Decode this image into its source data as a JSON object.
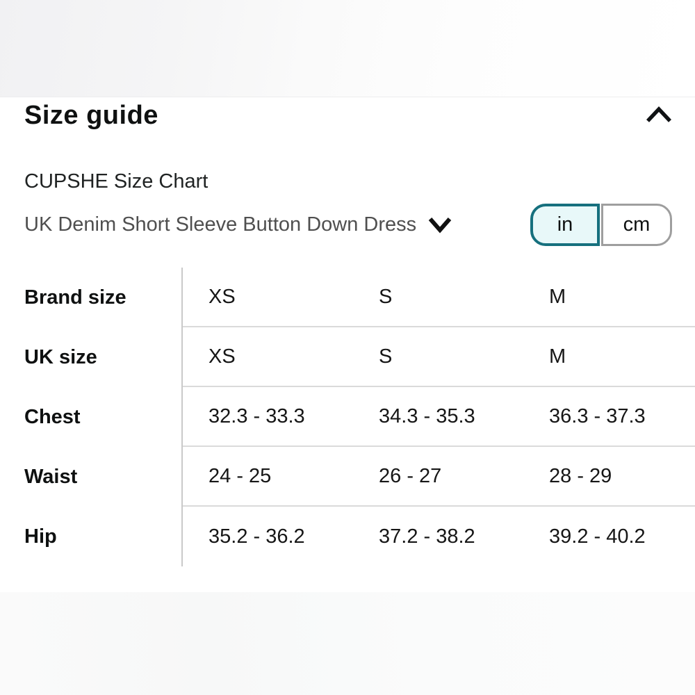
{
  "panel": {
    "title": "Size guide",
    "chart_title": "CUPSHE Size Chart",
    "product_selector": {
      "value": "UK Denim Short Sleeve Button Down Dress",
      "icon": "chevron-down-icon"
    },
    "collapse_icon": "chevron-up-icon",
    "unit_toggle": {
      "options": [
        {
          "label": "in",
          "selected": true
        },
        {
          "label": "cm",
          "selected": false
        }
      ],
      "selected_border_color": "#16707e",
      "selected_bg_color": "#e8f8f9",
      "unselected_border_color": "#9e9e9e"
    }
  },
  "chart_data": {
    "type": "table",
    "title": "CUPSHE Size Chart",
    "unit": "in",
    "columns": [
      "XS",
      "S",
      "M"
    ],
    "rows": [
      {
        "label": "Brand size",
        "values": [
          "XS",
          "S",
          "M"
        ]
      },
      {
        "label": "UK size",
        "values": [
          "XS",
          "S",
          "M"
        ]
      },
      {
        "label": "Chest",
        "values": [
          "32.3 - 33.3",
          "34.3 - 35.3",
          "36.3 - 37.3"
        ]
      },
      {
        "label": "Waist",
        "values": [
          "24 - 25",
          "26 - 27",
          "28 - 29"
        ]
      },
      {
        "label": "Hip",
        "values": [
          "35.2 - 36.2",
          "37.2 - 38.2",
          "39.2 - 40.2"
        ]
      }
    ]
  }
}
